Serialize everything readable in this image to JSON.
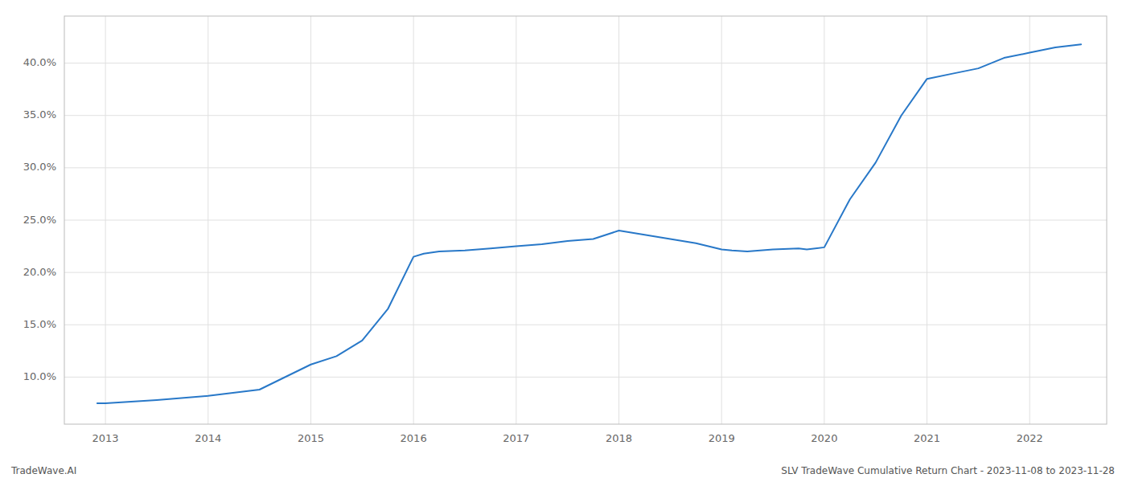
{
  "chart_data": {
    "type": "line",
    "x": [
      2012.92,
      2013.0,
      2013.5,
      2014.0,
      2014.5,
      2015.0,
      2015.25,
      2015.5,
      2015.75,
      2016.0,
      2016.1,
      2016.25,
      2016.5,
      2016.75,
      2017.0,
      2017.25,
      2017.5,
      2017.75,
      2018.0,
      2018.25,
      2018.5,
      2018.75,
      2019.0,
      2019.1,
      2019.25,
      2019.5,
      2019.75,
      2019.83,
      2020.0,
      2020.25,
      2020.5,
      2020.75,
      2021.0,
      2021.25,
      2021.5,
      2021.75,
      2022.0,
      2022.25,
      2022.5
    ],
    "values": [
      7.5,
      7.5,
      7.8,
      8.2,
      8.8,
      11.2,
      12.0,
      13.5,
      16.5,
      21.5,
      21.8,
      22.0,
      22.1,
      22.3,
      22.5,
      22.7,
      23.0,
      23.2,
      24.0,
      23.6,
      23.2,
      22.8,
      22.2,
      22.1,
      22.0,
      22.2,
      22.3,
      22.2,
      22.4,
      27.0,
      30.5,
      35.0,
      38.5,
      39.0,
      39.5,
      40.5,
      41.0,
      41.5,
      41.8
    ],
    "color": "#2878c8",
    "xlim": [
      2012.6,
      2022.75
    ],
    "xticks": [
      2013,
      2014,
      2015,
      2016,
      2017,
      2018,
      2019,
      2020,
      2021,
      2022
    ],
    "ylim": [
      5.5,
      44.5
    ],
    "yticks": [
      {
        "value": 10.0,
        "label": "10.0%"
      },
      {
        "value": 15.0,
        "label": "15.0%"
      },
      {
        "value": 20.0,
        "label": "20.0%"
      },
      {
        "value": 25.0,
        "label": "25.0%"
      },
      {
        "value": 30.0,
        "label": "30.0%"
      },
      {
        "value": 35.0,
        "label": "35.0%"
      },
      {
        "value": 40.0,
        "label": "40.0%"
      }
    ],
    "grid": true,
    "annotations": [
      "TradeWave.AI",
      "SLV TradeWave Cumulative Return Chart - 2023-11-08 to 2023-11-28"
    ]
  }
}
